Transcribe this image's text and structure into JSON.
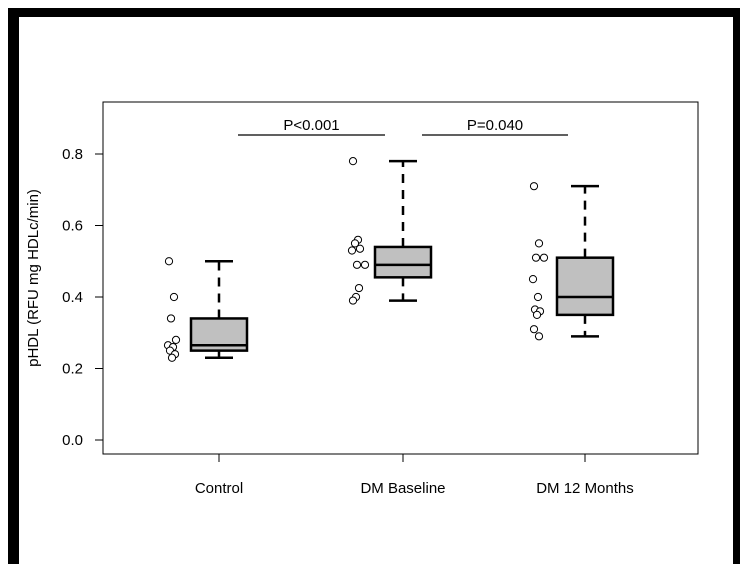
{
  "chart_data": {
    "type": "boxplot",
    "title": "",
    "xlabel": "",
    "ylabel": "pHDL (RFU mg HDLc/min)",
    "ylim": [
      -0.04,
      0.9
    ],
    "yticks": [
      0.0,
      0.2,
      0.4,
      0.6,
      0.8
    ],
    "ytick_labels": [
      "0.0",
      "0.2",
      "0.4",
      "0.6",
      "0.8"
    ],
    "categories": [
      "Control",
      "DM Baseline",
      "DM 12 Months"
    ],
    "box_fill": "#c0c0c0",
    "boxes": [
      {
        "group": "Control",
        "whisker_low": 0.23,
        "q1": 0.25,
        "median": 0.265,
        "q3": 0.34,
        "whisker_high": 0.5
      },
      {
        "group": "DM Baseline",
        "whisker_low": 0.39,
        "q1": 0.455,
        "median": 0.49,
        "q3": 0.54,
        "whisker_high": 0.78
      },
      {
        "group": "DM 12 Months",
        "whisker_low": 0.29,
        "q1": 0.35,
        "median": 0.4,
        "q3": 0.51,
        "whisker_high": 0.71
      }
    ],
    "points": [
      {
        "group": "Control",
        "values": [
          0.5,
          0.4,
          0.34,
          0.28,
          0.265,
          0.26,
          0.25,
          0.24,
          0.23
        ]
      },
      {
        "group": "DM Baseline",
        "values": [
          0.78,
          0.56,
          0.55,
          0.535,
          0.53,
          0.49,
          0.49,
          0.425,
          0.4,
          0.39
        ]
      },
      {
        "group": "DM 12 Months",
        "values": [
          0.71,
          0.55,
          0.51,
          0.51,
          0.45,
          0.4,
          0.365,
          0.36,
          0.35,
          0.31,
          0.29
        ]
      }
    ],
    "annotations": [
      {
        "text": "P<0.001",
        "from": "Control",
        "to": "DM Baseline"
      },
      {
        "text": "P=0.040",
        "from": "DM Baseline",
        "to": "DM 12 Months"
      }
    ]
  }
}
